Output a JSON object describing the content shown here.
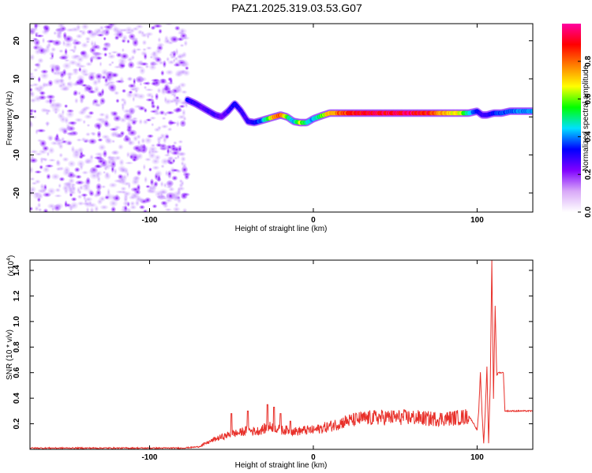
{
  "figure_title": "PAZ1.2025.319.03.53.G07",
  "chart_data": [
    {
      "type": "heatmap",
      "title": "PAZ1.2025.319.03.53.G07",
      "xlabel": "Height of straight line (km)",
      "ylabel": "Frequency (Hz)",
      "xlim": [
        -173,
        134
      ],
      "ylim": [
        -25,
        24.5
      ],
      "xticks": [
        "-100",
        "0",
        "100"
      ],
      "xtick_values": [
        -100,
        0,
        100
      ],
      "yticks": [
        "20",
        "10",
        "0",
        "-10",
        "-20"
      ],
      "ytick_values": [
        20,
        10,
        0,
        -10,
        -20
      ],
      "colorbar": {
        "label": "Normalized spectral amplitude",
        "range": [
          0,
          1
        ],
        "ticks": [
          "0.0",
          "0.2",
          "0.4",
          "0.6",
          "0.8"
        ],
        "tick_values": [
          0.0,
          0.2,
          0.4,
          0.6,
          0.8
        ],
        "colors": [
          "#ffffff",
          "#d8a8f8",
          "#8000ff",
          "#0000ff",
          "#00e0ff",
          "#00ff00",
          "#ffff00",
          "#ff8000",
          "#ff0000",
          "#ff00a0"
        ]
      },
      "noise_region_x_range": [
        -173,
        -77
      ],
      "ridge": {
        "x": [
          -77,
          -72,
          -68,
          -64,
          -60,
          -56,
          -52,
          -48,
          -44,
          -40,
          -36,
          -32,
          -28,
          -24,
          -20,
          -16,
          -12,
          -8,
          -4,
          0,
          5,
          10,
          20,
          30,
          40,
          50,
          60,
          70,
          80,
          90,
          95,
          100,
          103,
          106,
          110,
          115,
          120,
          134
        ],
        "freq": [
          4.5,
          3.5,
          2.5,
          1.5,
          0.5,
          0,
          1.5,
          3.5,
          1.5,
          -1.2,
          -1.5,
          -1,
          -0.5,
          0,
          0.5,
          0,
          -1.2,
          -1.5,
          -1.5,
          -0.5,
          0.3,
          1,
          1,
          1,
          1,
          1,
          1,
          1,
          1,
          1,
          1,
          1.5,
          0.5,
          0.5,
          1,
          1,
          1.5,
          1.5
        ],
        "amplitude": [
          0.35,
          0.3,
          0.28,
          0.3,
          0.3,
          0.25,
          0.3,
          0.35,
          0.3,
          0.3,
          0.35,
          0.4,
          0.55,
          0.8,
          0.9,
          0.6,
          0.45,
          0.7,
          0.5,
          0.45,
          0.6,
          0.8,
          0.92,
          0.97,
          1.0,
          1.0,
          1.0,
          0.95,
          0.8,
          0.7,
          0.5,
          0.35,
          0.3,
          0.3,
          0.35,
          0.4,
          0.4,
          0.45
        ]
      }
    },
    {
      "type": "line",
      "xlabel": "Height of straight line (km)",
      "ylabel": "SNR (10 * v/v)",
      "yscale_label": "(x10",
      "yscale_exponent": "4",
      "yscale_close": ")",
      "xlim": [
        -173,
        134
      ],
      "ylim": [
        0,
        1.48
      ],
      "xticks": [
        "-100",
        "0",
        "100"
      ],
      "xtick_values": [
        -100,
        0,
        100
      ],
      "yticks": [
        "0.2",
        "0.4",
        "0.6",
        "0.8",
        "1.0",
        "1.2",
        "1.4"
      ],
      "ytick_values": [
        0.2,
        0.4,
        0.6,
        0.8,
        1.0,
        1.2,
        1.4
      ],
      "series": [
        {
          "name": "SNR",
          "color": "#e8302a",
          "x": [
            -173,
            -80,
            -70,
            -65,
            -60,
            -55,
            -50,
            -45,
            -40,
            -35,
            -30,
            -25,
            -20,
            -15,
            -10,
            -5,
            0,
            10,
            20,
            30,
            40,
            50,
            60,
            70,
            80,
            90,
            95,
            98,
            100,
            101,
            102,
            103,
            104,
            105,
            106,
            107,
            108,
            109,
            110,
            111,
            112,
            113,
            115,
            116,
            117,
            120,
            134
          ],
          "values": [
            0.01,
            0.01,
            0.02,
            0.05,
            0.08,
            0.1,
            0.12,
            0.13,
            0.15,
            0.14,
            0.16,
            0.18,
            0.15,
            0.15,
            0.14,
            0.15,
            0.15,
            0.18,
            0.22,
            0.24,
            0.25,
            0.25,
            0.25,
            0.24,
            0.24,
            0.25,
            0.26,
            0.2,
            0.15,
            0.3,
            0.6,
            0.28,
            0.05,
            0.3,
            0.65,
            0.05,
            0.5,
            1.48,
            0.4,
            1.12,
            0.58,
            0.6,
            0.6,
            0.6,
            0.3,
            0.3,
            0.3
          ],
          "spikes": [
            {
              "x": -50,
              "value": 0.28
            },
            {
              "x": -40,
              "value": 0.3
            },
            {
              "x": -28,
              "value": 0.35
            },
            {
              "x": -24,
              "value": 0.33
            },
            {
              "x": -20,
              "value": 0.28
            },
            {
              "x": -14,
              "value": 0.22
            }
          ]
        }
      ]
    }
  ]
}
